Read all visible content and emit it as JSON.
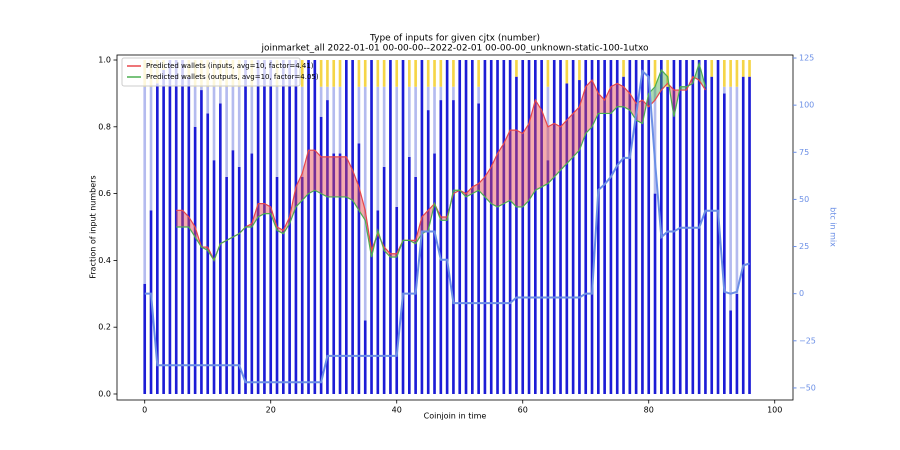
{
  "chart_data": {
    "type": "bar",
    "title": "Type of inputs for given cjtx (number)",
    "subtitle": "joinmarket_all 2022-01-01 00-00-00--2022-02-01 00-00-00_unknown-static-100-1utxo",
    "xlabel": "Coinjoin in time",
    "ylabel": "Fraction of input numbers",
    "y2label": "btc in mix",
    "legend": "upper left",
    "x": [
      0,
      1,
      2,
      3,
      4,
      5,
      6,
      7,
      8,
      9,
      10,
      11,
      12,
      13,
      14,
      15,
      16,
      17,
      18,
      19,
      20,
      21,
      22,
      23,
      24,
      25,
      26,
      27,
      28,
      29,
      30,
      31,
      32,
      33,
      34,
      35,
      36,
      37,
      38,
      39,
      40,
      41,
      42,
      43,
      44,
      45,
      46,
      47,
      48,
      49,
      50,
      51,
      52,
      53,
      54,
      55,
      56,
      57,
      58,
      59,
      60,
      61,
      62,
      63,
      64,
      65,
      66,
      67,
      68,
      69,
      70,
      71,
      72,
      73,
      74,
      75,
      76,
      77,
      78,
      79,
      80,
      81,
      82,
      83,
      84,
      85,
      86,
      87,
      88,
      89,
      90,
      91,
      92,
      93,
      94,
      95,
      96
    ],
    "bar_series": [
      {
        "color": "#1c1cd6",
        "values": [
          0.33,
          0.55,
          0.93,
          0.97,
          1,
          1,
          1,
          0.95,
          0.8,
          0.91,
          0.84,
          0.7,
          0.87,
          0.65,
          0.73,
          0.68,
          1,
          0.72,
          1,
          1,
          1,
          0.65,
          1,
          1,
          1,
          0.65,
          1,
          1,
          0.83,
          0.88,
          0.72,
          0.72,
          1,
          1,
          0.75,
          0.22,
          1,
          0.55,
          0.68,
          1,
          0.56,
          1,
          0.71,
          0.65,
          1,
          0.85,
          0.72,
          0.88,
          1,
          0.88,
          1,
          1,
          1,
          0.87,
          1,
          1,
          1,
          1,
          1,
          0.95,
          1,
          1,
          1,
          1,
          0.7,
          1,
          1,
          0.93,
          1,
          0.94,
          1,
          1,
          1,
          1,
          1,
          1,
          0.95,
          1,
          1,
          1,
          1,
          0.6,
          1,
          0.92,
          1,
          1,
          1,
          1,
          1,
          1,
          0.95,
          1,
          0.9,
          0.25,
          0.3,
          0.95,
          0.95
        ]
      },
      {
        "color": "#b4bbef",
        "values": [
          0.59,
          0.37,
          0,
          0,
          0,
          0,
          0,
          0,
          0.12,
          0.01,
          0.08,
          0.22,
          0.05,
          0.27,
          0.19,
          0.24,
          0,
          0.2,
          0,
          0,
          0,
          0.27,
          0,
          0,
          0,
          0.27,
          0,
          0,
          0.09,
          0.04,
          0.2,
          0.2,
          0,
          0,
          0.17,
          0.7,
          0,
          0.37,
          0.24,
          0,
          0.36,
          0,
          0.21,
          0.27,
          0,
          0.07,
          0.2,
          0.04,
          0,
          0.04,
          0,
          0,
          0,
          0.05,
          0,
          0,
          0,
          0,
          0,
          0,
          0,
          0,
          0,
          0,
          0.22,
          0,
          0,
          0,
          0,
          0,
          0,
          0,
          0,
          0,
          0,
          0,
          0,
          0,
          0,
          0,
          0,
          0.32,
          0,
          0,
          0,
          0,
          0,
          0,
          0,
          0,
          0,
          0,
          0.02,
          0.67,
          0.62,
          0,
          0
        ]
      },
      {
        "color": "#f5d547",
        "values": [
          0.08,
          0.08,
          0.07,
          0.03,
          0,
          0,
          0,
          0.05,
          0.08,
          0.08,
          0.08,
          0.08,
          0.08,
          0.08,
          0.08,
          0.08,
          0,
          0.08,
          0,
          0,
          0,
          0.08,
          0,
          0,
          0,
          0.08,
          0,
          0,
          0.08,
          0.08,
          0.08,
          0.08,
          0,
          0,
          0.08,
          0.08,
          0,
          0.08,
          0.08,
          0,
          0.08,
          0,
          0.08,
          0.08,
          0,
          0.08,
          0.08,
          0.08,
          0,
          0.08,
          0,
          0,
          0,
          0.08,
          0,
          0,
          0,
          0,
          0,
          0.05,
          0,
          0,
          0,
          0,
          0.08,
          0,
          0,
          0.07,
          0,
          0.06,
          0,
          0,
          0,
          0,
          0,
          0,
          0.05,
          0,
          0,
          0,
          0,
          0.08,
          0,
          0.08,
          0,
          0,
          0,
          0,
          0,
          0,
          0.05,
          0,
          0.08,
          0.08,
          0.08,
          0.05,
          0.05
        ]
      }
    ],
    "series": [
      {
        "name": "Predicted wallets (inputs, avg=10, factor=4.41)",
        "color": "#e8474b",
        "values": [
          null,
          null,
          null,
          null,
          null,
          0.55,
          0.55,
          0.53,
          0.5,
          0.44,
          0.44,
          0.4,
          0.45,
          0.46,
          0.47,
          0.48,
          0.5,
          0.51,
          0.57,
          0.57,
          0.56,
          0.5,
          0.49,
          0.53,
          0.62,
          0.66,
          0.73,
          0.73,
          0.71,
          0.71,
          0.71,
          0.71,
          0.71,
          0.67,
          0.62,
          0.55,
          0.43,
          0.48,
          0.44,
          0.42,
          0.42,
          0.46,
          0.46,
          0.46,
          0.53,
          0.55,
          0.57,
          0.53,
          0.53,
          0.6,
          0.61,
          0.6,
          0.62,
          0.63,
          0.65,
          0.68,
          0.72,
          0.75,
          0.79,
          0.79,
          0.78,
          0.81,
          0.88,
          0.85,
          0.8,
          0.81,
          0.8,
          0.82,
          0.84,
          0.86,
          0.92,
          0.94,
          0.9,
          0.88,
          0.92,
          0.93,
          0.92,
          0.9,
          0.87,
          0.88,
          0.86,
          0.88,
          0.91,
          0.93,
          0.91,
          0.91,
          0.91,
          0.95,
          0.94,
          0.91,
          null,
          null,
          null,
          null,
          null,
          null,
          null
        ]
      },
      {
        "name": "Predicted wallets (outputs, avg=10, factor=4.05)",
        "color": "#4caf50",
        "values": [
          null,
          null,
          null,
          null,
          null,
          0.5,
          0.5,
          0.5,
          0.47,
          0.44,
          0.43,
          0.4,
          0.45,
          0.46,
          0.47,
          0.48,
          0.5,
          0.5,
          0.53,
          0.54,
          0.54,
          0.49,
          0.48,
          0.51,
          0.56,
          0.58,
          0.6,
          0.61,
          0.6,
          0.59,
          0.59,
          0.59,
          0.59,
          0.58,
          0.55,
          0.52,
          0.41,
          0.49,
          0.43,
          0.41,
          0.41,
          0.46,
          0.46,
          0.45,
          0.48,
          0.49,
          0.57,
          0.52,
          0.52,
          0.61,
          0.61,
          0.59,
          0.6,
          0.61,
          0.59,
          0.57,
          0.56,
          0.57,
          0.58,
          0.56,
          0.56,
          0.58,
          0.61,
          0.62,
          0.63,
          0.65,
          0.67,
          0.69,
          0.71,
          0.73,
          0.78,
          0.8,
          0.84,
          0.84,
          0.84,
          0.86,
          0.86,
          0.85,
          0.82,
          0.81,
          0.9,
          0.92,
          0.97,
          0.95,
          0.83,
          0.92,
          0.92,
          0.93,
          0.99,
          0.92,
          null,
          null,
          null,
          null,
          null,
          null,
          null
        ]
      },
      {
        "color": "#6b8fe6",
        "axis": "y2",
        "values": [
          0,
          0,
          -38,
          -38,
          -38,
          -38,
          -38,
          -38,
          -38,
          -38,
          -38,
          -38,
          -38,
          -38,
          -38,
          -38,
          -47,
          -47,
          -47,
          -47,
          -47,
          -47,
          -47,
          -47,
          -47,
          -47,
          -47,
          -47,
          -47,
          -33,
          -33,
          -33,
          -33,
          -33,
          -33,
          -33,
          -33,
          -33,
          -33,
          -33,
          -33,
          0,
          0,
          0,
          33,
          33,
          33,
          18,
          18,
          -5,
          -5,
          -5,
          -5,
          -5,
          -5,
          -5,
          -5,
          -5,
          -5,
          -2,
          -2,
          -2,
          -2,
          -2,
          -2,
          -2,
          -2,
          -2,
          -2,
          -2,
          0,
          0,
          55,
          58,
          62,
          68,
          72,
          72,
          95,
          118,
          115,
          70,
          30,
          33,
          33,
          35,
          35,
          35,
          35,
          44,
          44,
          44,
          1,
          0,
          1,
          15,
          16
        ]
      }
    ],
    "xlim": [
      -4.4,
      102.9
    ],
    "ylim": [
      -0.018,
      1.015
    ],
    "y2lim": [
      -56.4,
      126.6
    ],
    "xticks": [
      0,
      20,
      40,
      60,
      80,
      100
    ],
    "yticks": [
      {
        "value": 0,
        "label": "0.0"
      },
      {
        "value": 0.2,
        "label": "0.2"
      },
      {
        "value": 0.4,
        "label": "0.4"
      },
      {
        "value": 0.6,
        "label": "0.6"
      },
      {
        "value": 0.8,
        "label": "0.8"
      },
      {
        "value": 1,
        "label": "1.0"
      }
    ],
    "y2ticks": [
      {
        "value": -50,
        "label": "−50"
      },
      {
        "value": -25,
        "label": "−25"
      },
      0,
      25,
      50,
      75,
      100,
      125
    ]
  }
}
